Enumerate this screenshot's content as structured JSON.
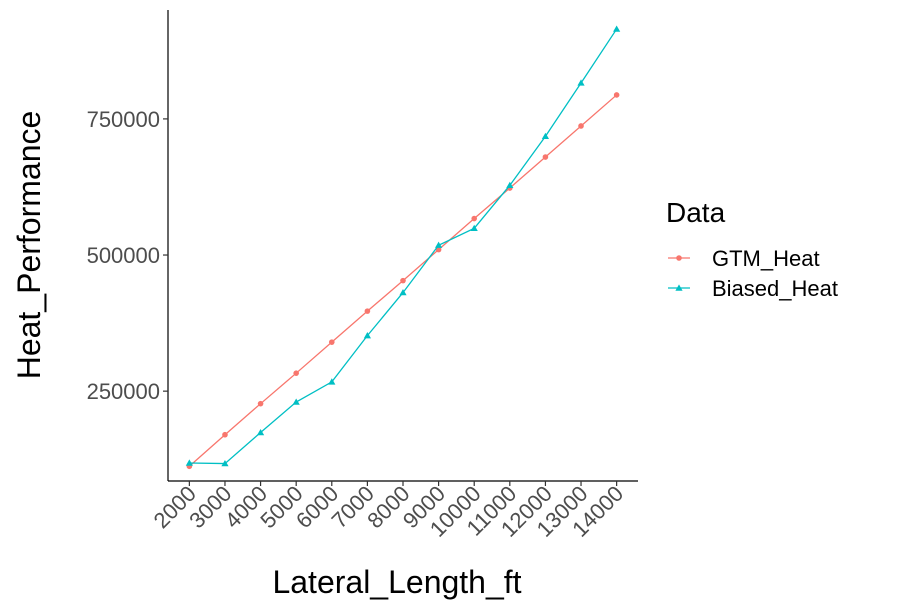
{
  "chart_data": {
    "type": "line",
    "xlabel": "Lateral_Length_ft",
    "ylabel": "Heat_Performance",
    "categories": [
      "2000",
      "3000",
      "4000",
      "5000",
      "6000",
      "7000",
      "8000",
      "9000",
      "10000",
      "11000",
      "12000",
      "13000",
      "14000"
    ],
    "x": [
      2000,
      3000,
      4000,
      5000,
      6000,
      7000,
      8000,
      9000,
      10000,
      11000,
      12000,
      13000,
      14000
    ],
    "yticks": [
      250000,
      500000,
      750000
    ],
    "ytick_labels": [
      "250000",
      "500000",
      "750000"
    ],
    "ylim": [
      85000,
      950000
    ],
    "grid": false,
    "legend": {
      "title": "Data",
      "position": "right"
    },
    "series": [
      {
        "name": "GTM_Heat",
        "color": "#F8766D",
        "marker": "circle",
        "values": [
          112000,
          170000,
          227000,
          283000,
          340000,
          397000,
          453000,
          510000,
          567000,
          623000,
          680000,
          737000,
          794000
        ]
      },
      {
        "name": "Biased_Heat",
        "color": "#00BFC4",
        "marker": "triangle",
        "values": [
          118000,
          117000,
          174000,
          230000,
          267000,
          352000,
          431000,
          518000,
          549000,
          628000,
          718000,
          816000,
          915000
        ]
      }
    ]
  }
}
